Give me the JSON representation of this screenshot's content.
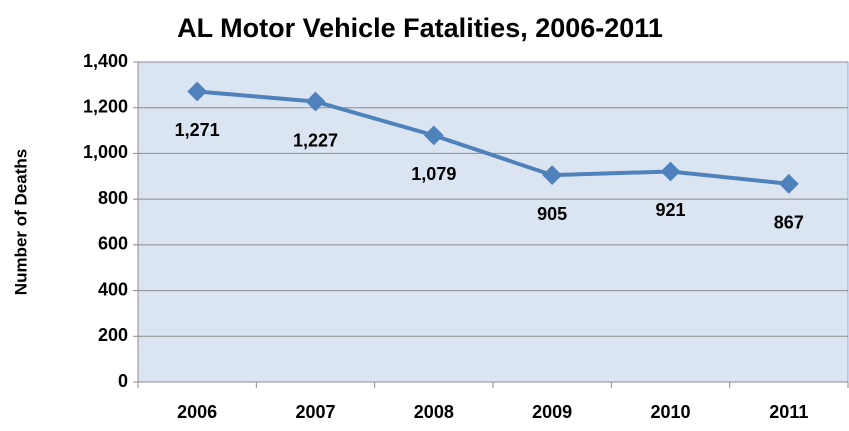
{
  "chart_data": {
    "type": "line",
    "title": "AL Motor Vehicle Fatalities, 2006-2011",
    "y_label": "Number of Deaths",
    "categories": [
      "2006",
      "2007",
      "2008",
      "2009",
      "2010",
      "2011"
    ],
    "series": [
      {
        "name": "Number of Deaths",
        "color": "#4f81bd",
        "values": [
          1271,
          1227,
          1079,
          905,
          921,
          867
        ],
        "value_labels": [
          "1,271",
          "1,227",
          "1,079",
          "905",
          "921",
          "867"
        ]
      }
    ],
    "ylim": [
      0,
      1400
    ],
    "yticks": [
      0,
      200,
      400,
      600,
      800,
      {
        "value": 1000,
        "label": "1,000"
      },
      {
        "value": 1200,
        "label": "1,200"
      },
      {
        "value": 1400,
        "label": "1,400"
      }
    ],
    "grid": true
  }
}
